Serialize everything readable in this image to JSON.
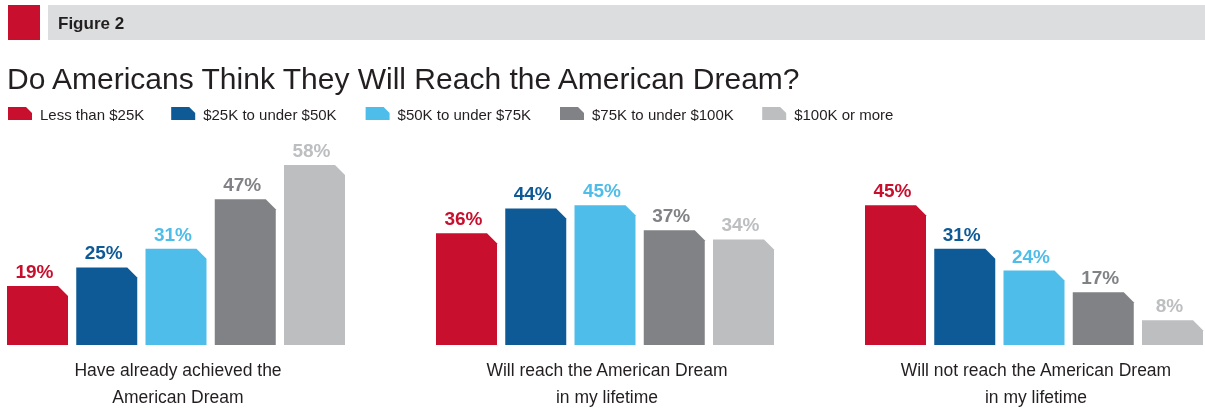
{
  "chart_data": {
    "type": "bar",
    "title": "Do Americans Think They Will Reach the American Dream?",
    "annotations": [
      "Figure 2"
    ],
    "categories": [
      "Have already achieved the\nAmerican Dream",
      "Will reach the American Dream\nin my lifetime",
      "Will not reach the American Dream\nin my lifetime"
    ],
    "series": [
      {
        "name": "Less than $25K",
        "color": "#c8102e",
        "values": [
          19,
          36,
          45
        ],
        "value_labels": [
          "19%",
          "36%",
          "45%"
        ]
      },
      {
        "name": "$25K to under $50K",
        "color": "#0e5a96",
        "values": [
          25,
          44,
          31
        ],
        "value_labels": [
          "25%",
          "44%",
          "31%"
        ]
      },
      {
        "name": "$50K to under $75K",
        "color": "#4fbde9",
        "values": [
          31,
          45,
          24
        ],
        "value_labels": [
          "31%",
          "45%",
          "24%"
        ]
      },
      {
        "name": "$75K to under $100K",
        "color": "#808285",
        "values": [
          47,
          37,
          17
        ],
        "value_labels": [
          "47%",
          "37%",
          "17%"
        ]
      },
      {
        "name": "$100K or more",
        "color": "#bcbec0",
        "values": [
          58,
          34,
          8
        ],
        "value_labels": [
          "58%",
          "34%",
          "8%"
        ]
      }
    ],
    "legend": "top left"
  }
}
